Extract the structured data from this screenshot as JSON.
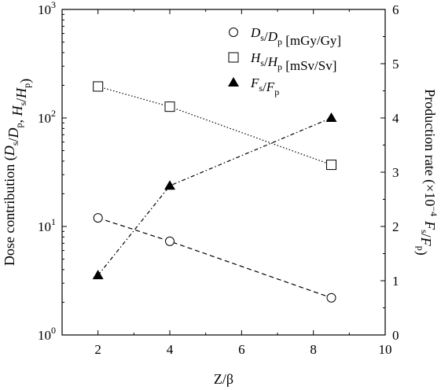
{
  "chart_data": {
    "type": "line",
    "xlabel": "Z/β",
    "ylabel_left": {
      "prefix": "Dose contribution (",
      "parts": [
        {
          "t": "D",
          "sub": "s"
        },
        {
          "t": "/D",
          "sub": "p"
        },
        {
          "t": ", "
        },
        {
          "t": "H",
          "sub": "s"
        },
        {
          "t": "/H",
          "sub": "p"
        },
        {
          "t": ")"
        }
      ]
    },
    "ylabel_right": {
      "prefix": "Production rate (×10",
      "sup": "−4",
      "parts": [
        {
          "t": " F",
          "sub": "s"
        },
        {
          "t": "/F",
          "sub": "p"
        },
        {
          "t": ")"
        }
      ]
    },
    "xlim": [
      1,
      10
    ],
    "ylim_left": [
      1,
      1000
    ],
    "yscale_left": "log",
    "ylim_right": [
      0,
      6
    ],
    "x_ticks": [
      2,
      4,
      6,
      8,
      10
    ],
    "x_tick_labels": [
      "2",
      "4",
      "6",
      "8",
      "10"
    ],
    "y_left_ticks": [
      1,
      10,
      100,
      1000
    ],
    "y_left_tick_labels": [
      {
        "base": "10",
        "exp": "0"
      },
      {
        "base": "10",
        "exp": "1"
      },
      {
        "base": "10",
        "exp": "2"
      },
      {
        "base": "10",
        "exp": "3"
      }
    ],
    "y_right_ticks": [
      0,
      1,
      2,
      3,
      4,
      5,
      6
    ],
    "y_right_tick_labels": [
      "0",
      "1",
      "2",
      "3",
      "4",
      "5",
      "6"
    ],
    "legend_position": "top-right",
    "series": [
      {
        "name": "Ds/Dp [mGy/Gy]",
        "legend_parts": [
          {
            "t": "D",
            "sub": "s"
          },
          {
            "t": "/D",
            "sub": "p"
          },
          {
            "t": " [mGy/Gy]"
          }
        ],
        "axis": "left",
        "marker": "circle-open",
        "line": "dashed",
        "x": [
          2,
          4,
          8.5
        ],
        "y": [
          12,
          7.3,
          2.2
        ]
      },
      {
        "name": "Hs/Hp [mSv/Sv]",
        "legend_parts": [
          {
            "t": "H",
            "sub": "s"
          },
          {
            "t": "/H",
            "sub": "p"
          },
          {
            "t": " [mSv/Sv]"
          }
        ],
        "axis": "left",
        "marker": "square-open",
        "line": "dotted",
        "x": [
          2,
          4,
          8.5
        ],
        "y": [
          195,
          127,
          37
        ]
      },
      {
        "name": "Fs/Fp",
        "legend_parts": [
          {
            "t": "F",
            "sub": "s"
          },
          {
            "t": "/F",
            "sub": "p"
          }
        ],
        "axis": "right",
        "marker": "triangle-filled",
        "line": "dash-dot",
        "x": [
          2,
          4,
          8.5
        ],
        "y": [
          1.1,
          2.75,
          4.0
        ]
      }
    ]
  }
}
